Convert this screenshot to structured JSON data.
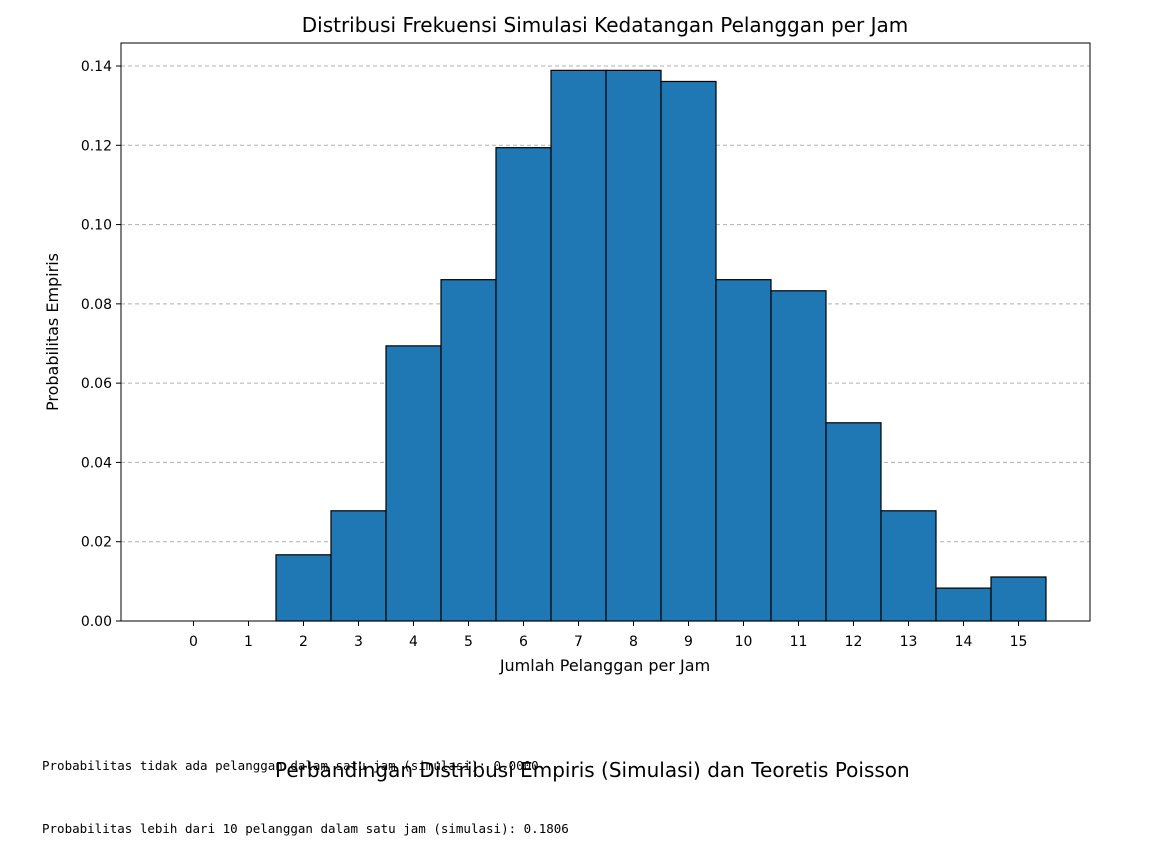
{
  "chart_data": {
    "type": "bar",
    "title": "Distribusi Frekuensi Simulasi Kedatangan Pelanggan per Jam",
    "xlabel": "Jumlah Pelanggan per Jam",
    "ylabel": "Probabilitas Empiris",
    "categories": [
      "0",
      "1",
      "2",
      "3",
      "4",
      "5",
      "6",
      "7",
      "8",
      "9",
      "10",
      "11",
      "12",
      "13",
      "14",
      "15"
    ],
    "values": [
      0.0,
      0.0,
      0.0167,
      0.0278,
      0.0694,
      0.0861,
      0.1194,
      0.1389,
      0.1389,
      0.1361,
      0.0861,
      0.0833,
      0.05,
      0.0278,
      0.0083,
      0.0111
    ],
    "ylim": [
      0,
      0.145
    ],
    "yticks": [
      "0.00",
      "0.02",
      "0.04",
      "0.06",
      "0.08",
      "0.10",
      "0.12",
      "0.14"
    ],
    "grid": "y-dashed",
    "bar_color": "#1f77b4",
    "edge_color": "#000000"
  },
  "output": {
    "line1": "Probabilitas tidak ada pelanggan dalam satu jam (simulasi): 0.0000",
    "line2": "Probabilitas lebih dari 10 pelanggan dalam satu jam (simulasi): 0.1806"
  },
  "next_title": "Perbandingan Distribusi Empiris (Simulasi) dan Teoretis Poisson"
}
